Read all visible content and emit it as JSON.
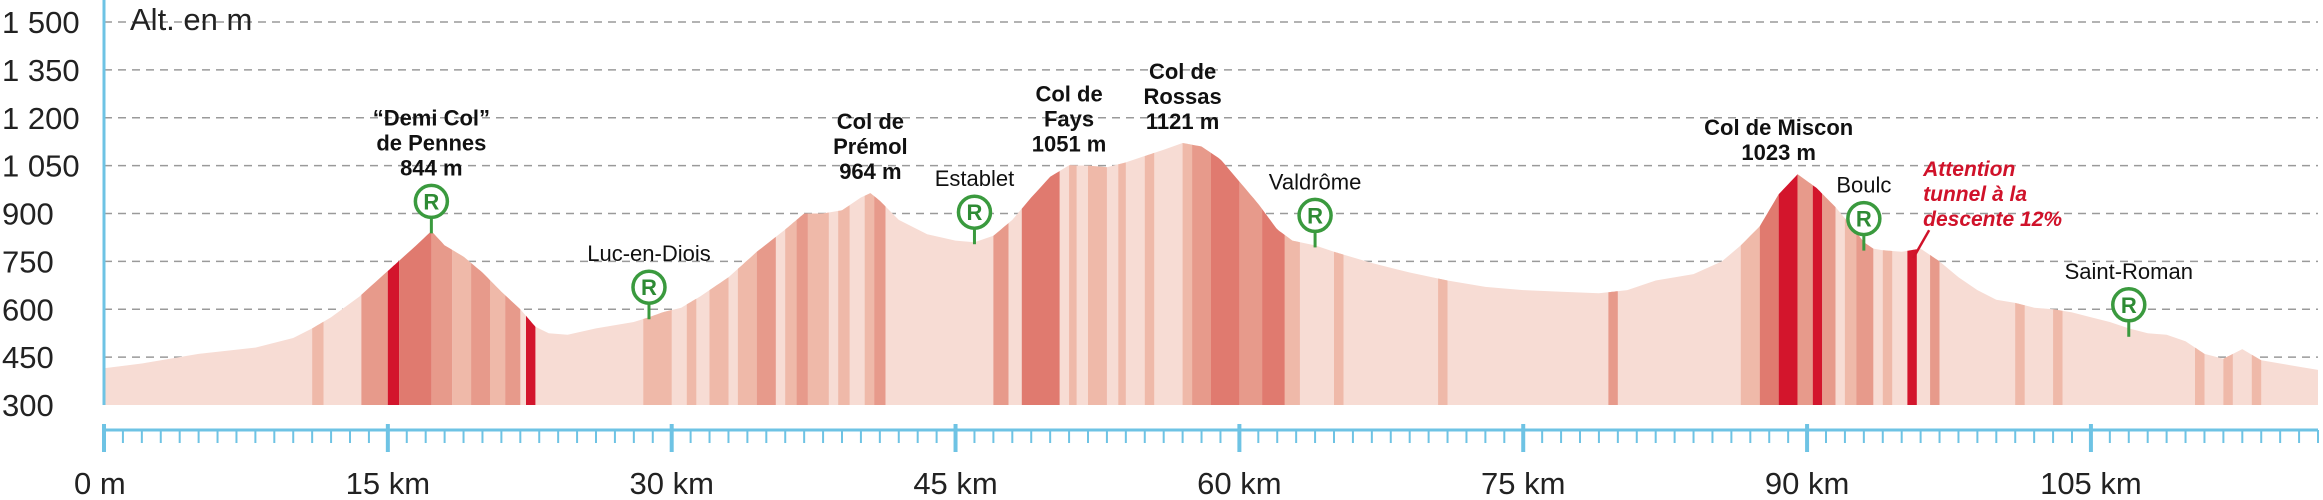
{
  "chart_data": {
    "type": "area",
    "ylabel": "Alt. en m",
    "xlim": [
      0,
      117
    ],
    "ylim": [
      300,
      1500
    ],
    "y_ticks": [
      300,
      450,
      600,
      750,
      900,
      1050,
      1200,
      1350,
      1500
    ],
    "y_tick_labels": [
      "300",
      "450",
      "600",
      "750",
      "900",
      "1 050",
      "1 200",
      "1 350",
      "1 500"
    ],
    "x_ticks": [
      0,
      15,
      30,
      45,
      60,
      75,
      90,
      105
    ],
    "x_tick_labels": [
      "0 m",
      "15 km",
      "30 km",
      "45 km",
      "60 km",
      "75 km",
      "90 km",
      "105 km"
    ],
    "grid": "horizontal-dashed",
    "profile": {
      "x": [
        0,
        2,
        5,
        8,
        10,
        11,
        12,
        13.5,
        15,
        16.5,
        17.3,
        18,
        19,
        20,
        21,
        22,
        22.8,
        23.5,
        24.5,
        26,
        28,
        28.8,
        29.5,
        30.5,
        31.5,
        33,
        34.5,
        36,
        37,
        38,
        39,
        40,
        40.5,
        41,
        42,
        43.5,
        45,
        46,
        47,
        48,
        49,
        50,
        51,
        52,
        53,
        54,
        55,
        56,
        57,
        58,
        59,
        60,
        61,
        62,
        62.8,
        64,
        65,
        67,
        69,
        71,
        73,
        75,
        77,
        79,
        80.5,
        82,
        84,
        85.5,
        86.5,
        87.5,
        88.5,
        89.5,
        90.5,
        91.5,
        92.5,
        93,
        93.5,
        94,
        95,
        96,
        97,
        98,
        99,
        100,
        101,
        102,
        103,
        104,
        105,
        106,
        107,
        108,
        109,
        110,
        111,
        112,
        113,
        114,
        115,
        116,
        117
      ],
      "y": [
        415,
        430,
        460,
        480,
        510,
        540,
        575,
        640,
        720,
        800,
        845,
        800,
        765,
        715,
        655,
        600,
        545,
        525,
        520,
        540,
        560,
        575,
        590,
        605,
        640,
        700,
        780,
        850,
        900,
        900,
        910,
        950,
        964,
        940,
        880,
        835,
        815,
        810,
        830,
        880,
        950,
        1015,
        1051,
        1050,
        1045,
        1060,
        1080,
        1100,
        1121,
        1110,
        1070,
        1000,
        930,
        850,
        815,
        800,
        780,
        745,
        715,
        690,
        670,
        660,
        655,
        650,
        660,
        690,
        710,
        750,
        800,
        860,
        960,
        1023,
        980,
        920,
        850,
        810,
        790,
        785,
        780,
        790,
        750,
        700,
        660,
        630,
        620,
        605,
        600,
        590,
        575,
        560,
        540,
        525,
        520,
        500,
        460,
        445,
        475,
        440,
        430,
        420,
        410
      ]
    },
    "steep_segments": [
      {
        "x0": 11,
        "x1": 11.6,
        "level": 1
      },
      {
        "x0": 13.6,
        "x1": 15,
        "level": 2
      },
      {
        "x0": 15,
        "x1": 15.6,
        "level": 4
      },
      {
        "x0": 15.6,
        "x1": 17.3,
        "level": 3
      },
      {
        "x0": 17.3,
        "x1": 18.4,
        "level": 2
      },
      {
        "x0": 18.4,
        "x1": 19.4,
        "level": 1
      },
      {
        "x0": 19.4,
        "x1": 20.4,
        "level": 2
      },
      {
        "x0": 20.4,
        "x1": 21.2,
        "level": 1
      },
      {
        "x0": 21.2,
        "x1": 22,
        "level": 2
      },
      {
        "x0": 22.3,
        "x1": 22.8,
        "level": 4
      },
      {
        "x0": 28.5,
        "x1": 30,
        "level": 1
      },
      {
        "x0": 30.8,
        "x1": 31.3,
        "level": 1
      },
      {
        "x0": 32,
        "x1": 33,
        "level": 1
      },
      {
        "x0": 33.5,
        "x1": 34.5,
        "level": 1
      },
      {
        "x0": 34.5,
        "x1": 35.5,
        "level": 2
      },
      {
        "x0": 36,
        "x1": 36.6,
        "level": 1
      },
      {
        "x0": 36.6,
        "x1": 37.2,
        "level": 2
      },
      {
        "x0": 37.2,
        "x1": 38.3,
        "level": 1
      },
      {
        "x0": 38.8,
        "x1": 39.4,
        "level": 1
      },
      {
        "x0": 40.2,
        "x1": 40.7,
        "level": 1
      },
      {
        "x0": 40.7,
        "x1": 41.3,
        "level": 2
      },
      {
        "x0": 47,
        "x1": 47.8,
        "level": 2
      },
      {
        "x0": 48.5,
        "x1": 50.5,
        "level": 3
      },
      {
        "x0": 51,
        "x1": 51.4,
        "level": 1
      },
      {
        "x0": 52,
        "x1": 53,
        "level": 1
      },
      {
        "x0": 53.6,
        "x1": 54,
        "level": 1
      },
      {
        "x0": 55,
        "x1": 55.5,
        "level": 1
      },
      {
        "x0": 57,
        "x1": 57.5,
        "level": 1
      },
      {
        "x0": 57.5,
        "x1": 58.5,
        "level": 2
      },
      {
        "x0": 58.5,
        "x1": 60,
        "level": 3
      },
      {
        "x0": 60,
        "x1": 61.2,
        "level": 2
      },
      {
        "x0": 61.2,
        "x1": 62.4,
        "level": 3
      },
      {
        "x0": 62.4,
        "x1": 63.2,
        "level": 1
      },
      {
        "x0": 65,
        "x1": 65.5,
        "level": 1
      },
      {
        "x0": 70.5,
        "x1": 71,
        "level": 1
      },
      {
        "x0": 79.5,
        "x1": 80,
        "level": 2
      },
      {
        "x0": 86.5,
        "x1": 87.5,
        "level": 1
      },
      {
        "x0": 87.5,
        "x1": 88.5,
        "level": 3
      },
      {
        "x0": 88.5,
        "x1": 89.5,
        "level": 4
      },
      {
        "x0": 89.5,
        "x1": 90.3,
        "level": 2
      },
      {
        "x0": 90.3,
        "x1": 90.8,
        "level": 4
      },
      {
        "x0": 90.8,
        "x1": 91.5,
        "level": 2
      },
      {
        "x0": 92,
        "x1": 92.6,
        "level": 1
      },
      {
        "x0": 92.6,
        "x1": 93.5,
        "level": 2
      },
      {
        "x0": 94,
        "x1": 94.5,
        "level": 1
      },
      {
        "x0": 95.3,
        "x1": 95.8,
        "level": 4
      },
      {
        "x0": 96.5,
        "x1": 97,
        "level": 2
      },
      {
        "x0": 101,
        "x1": 101.5,
        "level": 1
      },
      {
        "x0": 103,
        "x1": 103.5,
        "level": 1
      },
      {
        "x0": 110.5,
        "x1": 111,
        "level": 1
      },
      {
        "x0": 112,
        "x1": 112.5,
        "level": 1
      },
      {
        "x0": 113.5,
        "x1": 114,
        "level": 1
      }
    ],
    "annotations": [
      {
        "id": "demi-col-de-pennes",
        "km": 17.3,
        "alt": 844,
        "lines": [
          "“Demi Col”",
          "de Pennes",
          "844 m"
        ],
        "marker": "R",
        "style": "bold"
      },
      {
        "id": "luc-en-diois",
        "km": 28.8,
        "alt": 575,
        "lines": [
          "Luc-en-Diois"
        ],
        "marker": "R",
        "style": "plain"
      },
      {
        "id": "col-de-premol",
        "km": 40.5,
        "alt": 964,
        "lines": [
          "Col de",
          "Prémol",
          "964 m"
        ],
        "marker": "",
        "style": "bold"
      },
      {
        "id": "establet",
        "km": 46,
        "alt": 810,
        "lines": [
          "Establet"
        ],
        "marker": "R",
        "style": "plain"
      },
      {
        "id": "col-de-fays",
        "km": 51,
        "alt": 1051,
        "lines": [
          "Col de",
          "Fays",
          "1051 m"
        ],
        "marker": "",
        "style": "bold"
      },
      {
        "id": "col-de-rossas",
        "km": 57,
        "alt": 1121,
        "lines": [
          "Col de",
          "Rossas",
          "1121 m"
        ],
        "marker": "",
        "style": "bold"
      },
      {
        "id": "valdrome",
        "km": 64,
        "alt": 800,
        "lines": [
          "Valdrôme"
        ],
        "marker": "R",
        "style": "plain"
      },
      {
        "id": "col-de-miscon",
        "km": 88.5,
        "alt": 1023,
        "lines": [
          "Col de Miscon",
          "1023 m"
        ],
        "marker": "",
        "style": "bold"
      },
      {
        "id": "boulc",
        "km": 93,
        "alt": 790,
        "lines": [
          "Boulc"
        ],
        "marker": "R",
        "style": "plain"
      },
      {
        "id": "attention-tunnel",
        "km": 95.5,
        "alt": 760,
        "lines": [
          "Attention",
          "tunnel à la",
          "descente 12%"
        ],
        "marker": "",
        "style": "warning"
      },
      {
        "id": "saint-roman",
        "km": 107,
        "alt": 520,
        "lines": [
          "Saint-Roman"
        ],
        "marker": "R",
        "style": "plain"
      }
    ],
    "colors": {
      "background_fill": "#f7dcd4",
      "level_1": "#efb9a9",
      "level_2": "#e79a8b",
      "level_3": "#e07a6f",
      "level_4": "#d3152c",
      "axis": "#6ec3e4",
      "grid": "#9a9a9a",
      "marker": "#3a9a3e",
      "warning": "#d0122a"
    }
  }
}
